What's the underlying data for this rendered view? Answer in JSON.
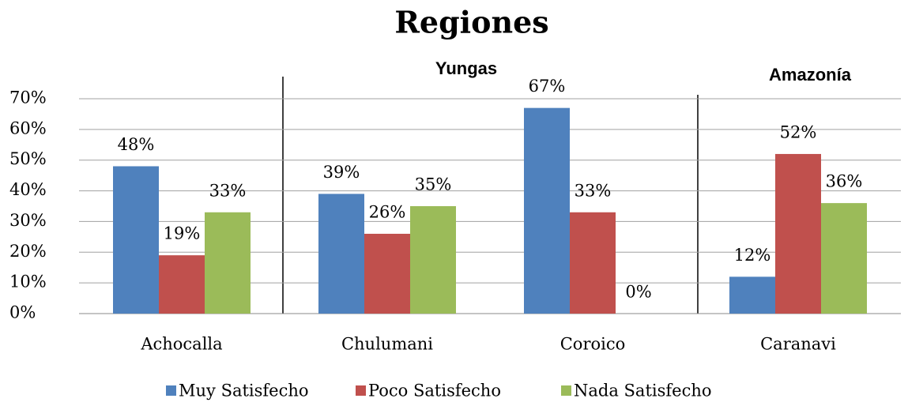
{
  "chart_data": {
    "type": "bar",
    "title": "Regiones",
    "annotations": [
      "Yungas",
      "Amazonía"
    ],
    "categories": [
      "Achocalla",
      "Chulumani",
      "Coroico",
      "Caranavi"
    ],
    "series": [
      {
        "name": "Muy Satisfecho",
        "color": "#4f81bd",
        "values": [
          48,
          39,
          67,
          12
        ],
        "value_labels": [
          "48%",
          "39%",
          "67%",
          "12%"
        ]
      },
      {
        "name": "Poco Satisfecho",
        "color": "#c0504d",
        "values": [
          19,
          26,
          33,
          52
        ],
        "value_labels": [
          "19%",
          "26%",
          "33%",
          "52%"
        ]
      },
      {
        "name": "Nada Satisfecho",
        "color": "#9bbb59",
        "values": [
          33,
          35,
          0,
          36
        ],
        "value_labels": [
          "33%",
          "35%",
          "0%",
          "36%"
        ]
      }
    ],
    "ylim": [
      0,
      70
    ],
    "yticks": [
      {
        "value": 0,
        "label": "0%"
      },
      {
        "value": 10,
        "label": "10%"
      },
      {
        "value": 20,
        "label": "20%"
      },
      {
        "value": 30,
        "label": "30%"
      },
      {
        "value": 40,
        "label": "40%"
      },
      {
        "value": 50,
        "label": "50%"
      },
      {
        "value": 60,
        "label": "60%"
      },
      {
        "value": 70,
        "label": "70%"
      }
    ],
    "grid": true,
    "legend": "bottom"
  }
}
